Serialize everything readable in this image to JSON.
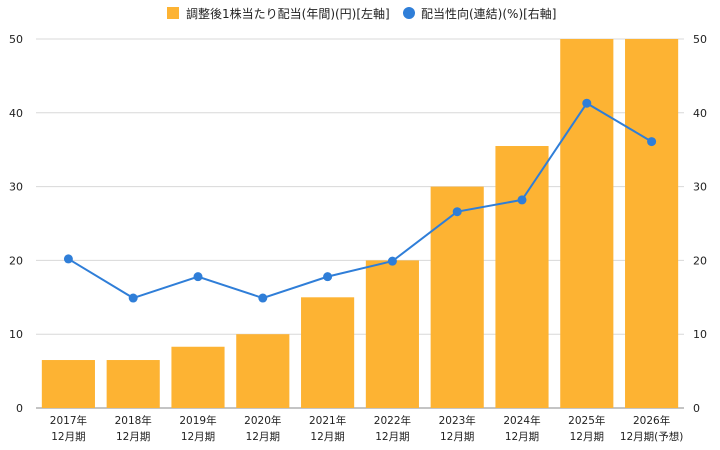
{
  "chart_data": {
    "type": "bar",
    "categories": [
      [
        "2017年",
        "12月期"
      ],
      [
        "2018年",
        "12月期"
      ],
      [
        "2019年",
        "12月期"
      ],
      [
        "2020年",
        "12月期"
      ],
      [
        "2021年",
        "12月期"
      ],
      [
        "2022年",
        "12月期"
      ],
      [
        "2023年",
        "12月期"
      ],
      [
        "2024年",
        "12月期"
      ],
      [
        "2025年",
        "12月期"
      ],
      [
        "2026年",
        "12月期(予想)"
      ]
    ],
    "series": [
      {
        "name": "調整後1株当たり配当(年間)(円)[左軸]",
        "type": "bar",
        "axis": "left",
        "color": "#FDB333",
        "values": [
          6.5,
          6.5,
          8.3,
          10,
          15,
          20,
          30,
          35.5,
          50,
          50
        ]
      },
      {
        "name": "配当性向(連結)(%)[右軸]",
        "type": "line",
        "axis": "right",
        "color": "#2F7ED8",
        "values": [
          20.2,
          14.9,
          17.8,
          14.9,
          17.8,
          19.9,
          26.6,
          28.2,
          41.3,
          36.1
        ]
      }
    ],
    "ylim_left": [
      0,
      50
    ],
    "ylim_right": [
      0,
      50
    ],
    "yticks_left": [
      "0",
      "10",
      "20",
      "30",
      "40",
      "50"
    ],
    "yticks_right": [
      "0",
      "10",
      "20",
      "30",
      "40",
      "50"
    ],
    "grid": true,
    "legend": "top-center"
  }
}
